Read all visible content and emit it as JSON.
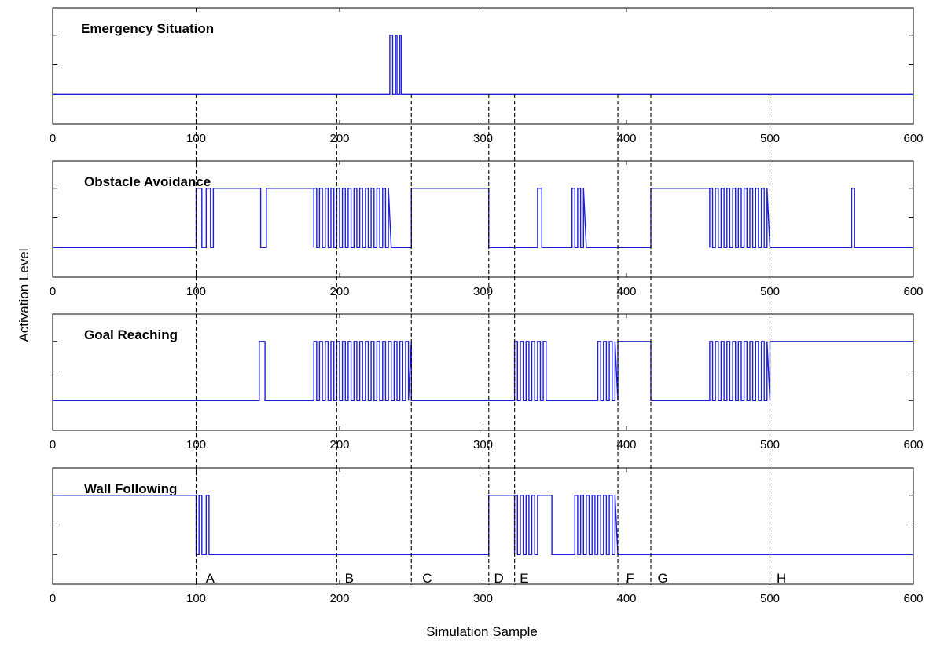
{
  "chart_data": {
    "type": "line",
    "xlabel": "Simulation Sample",
    "ylabel": "Activation Level",
    "xlim": [
      0,
      600
    ],
    "xticks": [
      "0",
      "100",
      "200",
      "300",
      "400",
      "500",
      "600"
    ],
    "grid": false,
    "markers": [
      100,
      198,
      250,
      304,
      322,
      394,
      417,
      500
    ],
    "segment_labels": [
      {
        "label": "A",
        "x": 105
      },
      {
        "label": "B",
        "x": 202
      },
      {
        "label": "C",
        "x": 256
      },
      {
        "label": "D",
        "x": 306
      },
      {
        "label": "E",
        "x": 324
      },
      {
        "label": "F",
        "x": 398
      },
      {
        "label": "G",
        "x": 420
      },
      {
        "label": "H",
        "x": 503
      }
    ],
    "panels": [
      {
        "name": "Emergency Situation",
        "ylim": [
          0,
          1.1
        ],
        "series": [
          {
            "x": [
              0,
              235,
              235,
              237,
              237,
              239,
              239,
              240,
              240,
              242,
              242,
              243,
              243,
              600
            ],
            "y": [
              0,
              0,
              1,
              1,
              0,
              0,
              1,
              1,
              0,
              0,
              1,
              1,
              0,
              0
            ]
          }
        ]
      },
      {
        "name": "Obstacle Avoidance",
        "ylim": [
          0,
          1.1
        ],
        "series": [
          {
            "x": [
              0,
              100,
              100,
              104,
              104,
              107,
              107,
              110,
              110,
              112,
              112,
              145,
              145,
              149,
              149,
              182,
              182
            ],
            "y": [
              0,
              0,
              1,
              1,
              0,
              0,
              1,
              1,
              0,
              0,
              1,
              1,
              0,
              0,
              1,
              1,
              0
            ],
            "burst": [
              182,
              236,
              2
            ],
            "x2": [
              236,
              236,
              250,
              250,
              304,
              304,
              338,
              338,
              341,
              341,
              362,
              362
            ],
            "y2": [
              0,
              0,
              0,
              1,
              1,
              0,
              0,
              1,
              1,
              0,
              0,
              1
            ],
            "burst2": [
              362,
              372,
              2
            ],
            "x3": [
              372,
              417,
              417,
              458
            ],
            "y3": [
              0,
              0,
              1,
              1
            ],
            "burst3": [
              458,
              500,
              2
            ],
            "x4": [
              500,
              557,
              557,
              559,
              559,
              600
            ],
            "y4": [
              0,
              0,
              1,
              1,
              0,
              0
            ]
          }
        ]
      },
      {
        "name": "Goal Reaching",
        "ylim": [
          0,
          1.1
        ],
        "series": [
          {
            "x": [
              0,
              144,
              144,
              148,
              148,
              182
            ],
            "y": [
              0,
              0,
              1,
              1,
              0,
              0
            ],
            "burst": [
              182,
              250,
              2
            ],
            "x2": [
              250,
              250,
              322
            ],
            "y2": [
              1,
              0,
              0
            ],
            "burst2": [
              322,
              346,
              2
            ],
            "x3": [
              346,
              346,
              380
            ],
            "y3": [
              0,
              0,
              0
            ],
            "burst3": [
              380,
              394,
              2
            ],
            "x4": [
              394,
              394,
              417,
              417,
              458
            ],
            "y4": [
              0,
              1,
              1,
              0,
              0
            ],
            "burst4": [
              458,
              500,
              2
            ],
            "x5": [
              500,
              500,
              600
            ],
            "y5": [
              0,
              1,
              1
            ]
          }
        ]
      },
      {
        "name": "Wall Following",
        "ylim": [
          0,
          1.1
        ],
        "series": [
          {
            "x": [
              0,
              100,
              100,
              102,
              102,
              104,
              104,
              107,
              107,
              109,
              109,
              110,
              110,
              304,
              304,
              322
            ],
            "y": [
              1,
              1,
              0,
              0,
              1,
              1,
              0,
              0,
              1,
              1,
              0,
              0,
              0,
              0,
              1,
              1
            ],
            "burst": [
              322,
              338,
              2
            ],
            "x2": [
              338,
              338,
              348,
              348,
              364
            ],
            "y2": [
              0,
              1,
              1,
              0,
              0
            ],
            "burst2": [
              364,
              394,
              2
            ],
            "x3": [
              394,
              394,
              600
            ],
            "y3": [
              0,
              0,
              0
            ]
          }
        ]
      }
    ]
  }
}
